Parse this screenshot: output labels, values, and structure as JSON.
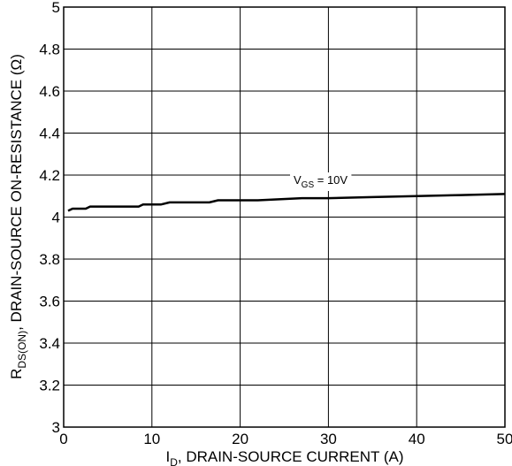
{
  "chart_data": {
    "type": "line",
    "xlabel": {
      "prefix": "I",
      "sub": "D",
      "rest": ", DRAIN-SOURCE CURRENT (A)"
    },
    "ylabel": {
      "prefix": "R",
      "sub": "DS(ON)",
      "rest": ", DRAIN-SOURCE ON-RESISTANCE (Ω)"
    },
    "xlim": [
      0,
      50
    ],
    "ylim": [
      3,
      5
    ],
    "x_ticks": [
      "0",
      "10",
      "20",
      "30",
      "40",
      "50"
    ],
    "y_ticks": [
      "3",
      "3.2",
      "3.4",
      "3.6",
      "3.8",
      "4",
      "4.2",
      "4.4",
      "4.6",
      "4.8",
      "5"
    ],
    "grid": true,
    "annotation": {
      "prefix": "V",
      "sub": "GS",
      "rest": " = 10V"
    },
    "series": [
      {
        "x": [
          0.5,
          1,
          2,
          2.5,
          3,
          8.5,
          9,
          11,
          12,
          16.5,
          17.5,
          22,
          27,
          30,
          35,
          40,
          45,
          50
        ],
        "y": [
          4.03,
          4.04,
          4.04,
          4.04,
          4.05,
          4.05,
          4.06,
          4.06,
          4.07,
          4.07,
          4.08,
          4.08,
          4.09,
          4.09,
          4.095,
          4.1,
          4.105,
          4.11
        ]
      }
    ],
    "line_color": "#000000",
    "grid_color": "#000000"
  }
}
